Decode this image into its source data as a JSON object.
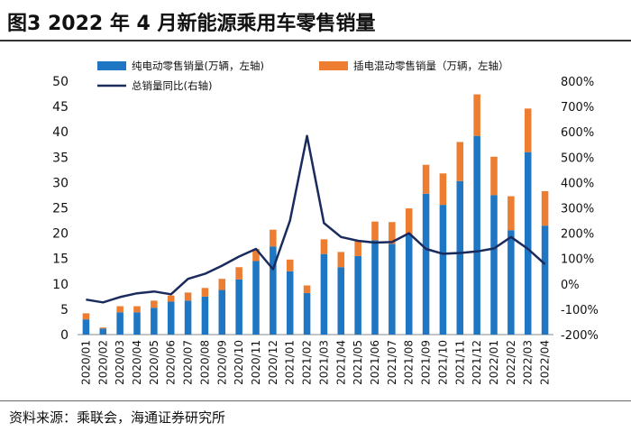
{
  "figure": {
    "title": "图3  2022 年 4 月新能源乘用车零售销量",
    "source": "资料来源：乘联会，海通证券研究所"
  },
  "chart_data": {
    "type": "bar",
    "stacked": true,
    "categories": [
      "2020/01",
      "2020/02",
      "2020/03",
      "2020/04",
      "2020/05",
      "2020/06",
      "2020/07",
      "2020/08",
      "2020/09",
      "2020/10",
      "2020/11",
      "2020/12",
      "2021/01",
      "2021/02",
      "2021/03",
      "2021/04",
      "2021/05",
      "2021/06",
      "2021/07",
      "2021/08",
      "2021/09",
      "2021/10",
      "2021/11",
      "2021/12",
      "2022/01",
      "2022/02",
      "2022/03",
      "2022/04"
    ],
    "series": [
      {
        "name": "纯电动零售销量(万辆，左轴)",
        "type": "bar",
        "axis": "left",
        "color": "#1f77c4",
        "values": [
          3.0,
          1.2,
          4.4,
          4.4,
          5.3,
          6.5,
          6.7,
          7.5,
          8.8,
          10.9,
          14.5,
          17.4,
          12.5,
          8.2,
          15.9,
          13.3,
          15.5,
          18.6,
          17.9,
          19.8,
          27.8,
          25.6,
          30.3,
          39.2,
          27.5,
          20.6,
          36.0,
          21.5
        ]
      },
      {
        "name": "插电混动零售销量（万辆，左轴）",
        "type": "bar",
        "axis": "left",
        "color": "#ed7d31",
        "values": [
          1.2,
          0.2,
          1.2,
          1.2,
          1.4,
          1.2,
          1.6,
          1.7,
          2.2,
          2.4,
          2.4,
          3.3,
          2.3,
          1.5,
          2.9,
          3.0,
          2.9,
          3.7,
          4.3,
          5.1,
          5.7,
          6.2,
          7.7,
          8.2,
          7.6,
          6.7,
          8.6,
          6.8
        ]
      },
      {
        "name": "总销量同比(右轴)",
        "type": "line",
        "axis": "right",
        "color": "#1a2b5e",
        "values": [
          -62,
          -73,
          -52,
          -37,
          -30,
          -41,
          20,
          40,
          72,
          108,
          138,
          58,
          250,
          584,
          240,
          185,
          170,
          163,
          165,
          200,
          138,
          119,
          122,
          128,
          140,
          185,
          138,
          78
        ]
      }
    ],
    "ylim_left": [
      0,
      50
    ],
    "yticks_left": [
      "0",
      "5",
      "10",
      "15",
      "20",
      "25",
      "30",
      "35",
      "40",
      "45",
      "50"
    ],
    "ylim_right": [
      -200,
      800
    ],
    "yticks_right": [
      "-200%",
      "-100%",
      "0%",
      "100%",
      "200%",
      "300%",
      "400%",
      "500%",
      "600%",
      "700%",
      "800%"
    ],
    "grid": false,
    "legend_position": "top-left"
  }
}
